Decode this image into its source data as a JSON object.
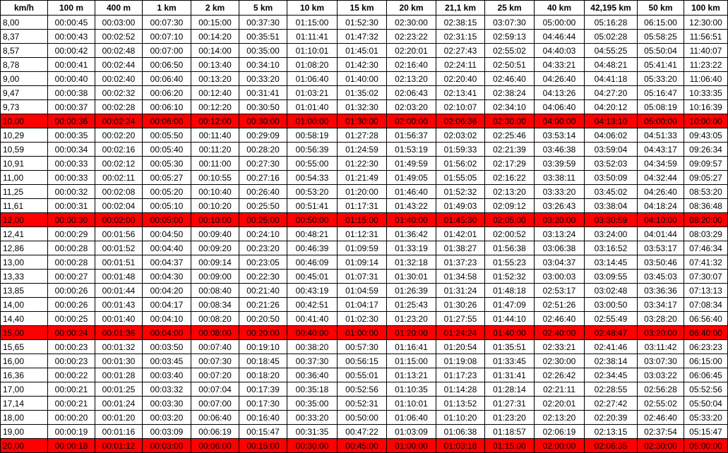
{
  "table": {
    "header": [
      "km/h",
      "100 m",
      "400 m",
      "1 km",
      "2 km",
      "5 km",
      "10 km",
      "15 km",
      "20 km",
      "21,1 km",
      "25 km",
      "40 km",
      "42,195 km",
      "50 km",
      "100 km"
    ],
    "highlight_color": "#ff0000",
    "rows": [
      {
        "cells": [
          "8,00",
          "00:00:45",
          "00:03:00",
          "00:07:30",
          "00:15:00",
          "00:37:30",
          "01:15:00",
          "01:52:30",
          "02:30:00",
          "02:38:15",
          "03:07:30",
          "05:00:00",
          "05:16:28",
          "06:15:00",
          "12:30:00"
        ]
      },
      {
        "cells": [
          "8,37",
          "00:00:43",
          "00:02:52",
          "00:07:10",
          "00:14:20",
          "00:35:51",
          "01:11:41",
          "01:47:32",
          "02:23:22",
          "02:31:15",
          "02:59:13",
          "04:46:44",
          "05:02:28",
          "05:58:25",
          "11:56:51"
        ]
      },
      {
        "cells": [
          "8,57",
          "00:00:42",
          "00:02:48",
          "00:07:00",
          "00:14:00",
          "00:35:00",
          "01:10:01",
          "01:45:01",
          "02:20:01",
          "02:27:43",
          "02:55:02",
          "04:40:03",
          "04:55:25",
          "05:50:04",
          "11:40:07"
        ]
      },
      {
        "cells": [
          "8,78",
          "00:00:41",
          "00:02:44",
          "00:06:50",
          "00:13:40",
          "00:34:10",
          "01:08:20",
          "01:42:30",
          "02:16:40",
          "02:24:11",
          "02:50:51",
          "04:33:21",
          "04:48:21",
          "05:41:41",
          "11:23:22"
        ]
      },
      {
        "cells": [
          "9,00",
          "00:00:40",
          "00:02:40",
          "00:06:40",
          "00:13:20",
          "00:33:20",
          "01:06:40",
          "01:40:00",
          "02:13:20",
          "02:20:40",
          "02:46:40",
          "04:26:40",
          "04:41:18",
          "05:33:20",
          "11:06:40"
        ]
      },
      {
        "cells": [
          "9,47",
          "00:00:38",
          "00:02:32",
          "00:06:20",
          "00:12:40",
          "00:31:41",
          "01:03:21",
          "01:35:02",
          "02:06:43",
          "02:13:41",
          "02:38:24",
          "04:13:26",
          "04:27:20",
          "05:16:47",
          "10:33:35"
        ]
      },
      {
        "cells": [
          "9,73",
          "00:00:37",
          "00:02:28",
          "00:06:10",
          "00:12:20",
          "00:30:50",
          "01:01:40",
          "01:32:30",
          "02:03:20",
          "02:10:07",
          "02:34:10",
          "04:06:40",
          "04:20:12",
          "05:08:19",
          "10:16:39"
        ]
      },
      {
        "cells": [
          "10,00",
          "00:00:36",
          "00:02:24",
          "00:06:00",
          "00:12:00",
          "00:30:00",
          "01:00:00",
          "01:30:00",
          "02:00:00",
          "02:06:36",
          "02:30:00",
          "04:00:00",
          "04:13:10",
          "05:00:00",
          "10:00:00"
        ],
        "highlighted": true
      },
      {
        "cells": [
          "10,29",
          "00:00:35",
          "00:02:20",
          "00:05:50",
          "00:11:40",
          "00:29:09",
          "00:58:19",
          "01:27:28",
          "01:56:37",
          "02:03:02",
          "02:25:46",
          "03:53:14",
          "04:06:02",
          "04:51:33",
          "09:43:05"
        ]
      },
      {
        "cells": [
          "10,59",
          "00:00:34",
          "00:02:16",
          "00:05:40",
          "00:11:20",
          "00:28:20",
          "00:56:39",
          "01:24:59",
          "01:53:19",
          "01:59:33",
          "02:21:39",
          "03:46:38",
          "03:59:04",
          "04:43:17",
          "09:26:34"
        ]
      },
      {
        "cells": [
          "10,91",
          "00:00:33",
          "00:02:12",
          "00:05:30",
          "00:11:00",
          "00:27:30",
          "00:55:00",
          "01:22:30",
          "01:49:59",
          "01:56:02",
          "02:17:29",
          "03:39:59",
          "03:52:03",
          "04:34:59",
          "09:09:57"
        ]
      },
      {
        "cells": [
          "11,00",
          "00:00:33",
          "00:02:11",
          "00:05:27",
          "00:10:55",
          "00:27:16",
          "00:54:33",
          "01:21:49",
          "01:49:05",
          "01:55:05",
          "02:16:22",
          "03:38:11",
          "03:50:09",
          "04:32:44",
          "09:05:27"
        ]
      },
      {
        "cells": [
          "11,25",
          "00:00:32",
          "00:02:08",
          "00:05:20",
          "00:10:40",
          "00:26:40",
          "00:53:20",
          "01:20:00",
          "01:46:40",
          "01:52:32",
          "02:13:20",
          "03:33:20",
          "03:45:02",
          "04:26:40",
          "08:53:20"
        ]
      },
      {
        "cells": [
          "11,61",
          "00:00:31",
          "00:02:04",
          "00:05:10",
          "00:10:20",
          "00:25:50",
          "00:51:41",
          "01:17:31",
          "01:43:22",
          "01:49:03",
          "02:09:12",
          "03:26:43",
          "03:38:04",
          "04:18:24",
          "08:36:48"
        ]
      },
      {
        "cells": [
          "12,00",
          "00:00:30",
          "00:02:00",
          "00:05:00",
          "00:10:00",
          "00:25:00",
          "00:50:00",
          "01:15:00",
          "01:40:00",
          "01:45:30",
          "02:05:00",
          "03:20:00",
          "03:30:59",
          "04:10:00",
          "08:20:00"
        ],
        "highlighted": true
      },
      {
        "cells": [
          "12,41",
          "00:00:29",
          "00:01:56",
          "00:04:50",
          "00:09:40",
          "00:24:10",
          "00:48:21",
          "01:12:31",
          "01:36:42",
          "01:42:01",
          "02:00:52",
          "03:13:24",
          "03:24:00",
          "04:01:44",
          "08:03:29"
        ]
      },
      {
        "cells": [
          "12,86",
          "00:00:28",
          "00:01:52",
          "00:04:40",
          "00:09:20",
          "00:23:20",
          "00:46:39",
          "01:09:59",
          "01:33:19",
          "01:38:27",
          "01:56:38",
          "03:06:38",
          "03:16:52",
          "03:53:17",
          "07:46:34"
        ]
      },
      {
        "cells": [
          "13,00",
          "00:00:28",
          "00:01:51",
          "00:04:37",
          "00:09:14",
          "00:23:05",
          "00:46:09",
          "01:09:14",
          "01:32:18",
          "01:37:23",
          "01:55:23",
          "03:04:37",
          "03:14:45",
          "03:50:46",
          "07:41:32"
        ]
      },
      {
        "cells": [
          "13,33",
          "00:00:27",
          "00:01:48",
          "00:04:30",
          "00:09:00",
          "00:22:30",
          "00:45:01",
          "01:07:31",
          "01:30:01",
          "01:34:58",
          "01:52:32",
          "03:00:03",
          "03:09:55",
          "03:45:03",
          "07:30:07"
        ]
      },
      {
        "cells": [
          "13,85",
          "00:00:26",
          "00:01:44",
          "00:04:20",
          "00:08:40",
          "00:21:40",
          "00:43:19",
          "01:04:59",
          "01:26:39",
          "01:31:24",
          "01:48:18",
          "02:53:17",
          "03:02:48",
          "03:36:36",
          "07:13:13"
        ]
      },
      {
        "cells": [
          "14,00",
          "00:00:26",
          "00:01:43",
          "00:04:17",
          "00:08:34",
          "00:21:26",
          "00:42:51",
          "01:04:17",
          "01:25:43",
          "01:30:26",
          "01:47:09",
          "02:51:26",
          "03:00:50",
          "03:34:17",
          "07:08:34"
        ]
      },
      {
        "cells": [
          "14,40",
          "00:00:25",
          "00:01:40",
          "00:04:10",
          "00:08:20",
          "00:20:50",
          "00:41:40",
          "01:02:30",
          "01:23:20",
          "01:27:55",
          "01:44:10",
          "02:46:40",
          "02:55:49",
          "03:28:20",
          "06:56:40"
        ]
      },
      {
        "cells": [
          "15,00",
          "00:00:24",
          "00:01:36",
          "00:04:00",
          "00:08:00",
          "00:20:00",
          "00:40:00",
          "01:00:00",
          "01:20:00",
          "01:24:24",
          "01:40:00",
          "02:40:00",
          "02:48:47",
          "03:20:00",
          "06:40:00"
        ],
        "highlighted": true
      },
      {
        "cells": [
          "15,65",
          "00:00:23",
          "00:01:32",
          "00:03:50",
          "00:07:40",
          "00:19:10",
          "00:38:20",
          "00:57:30",
          "01:16:41",
          "01:20:54",
          "01:35:51",
          "02:33:21",
          "02:41:46",
          "03:11:42",
          "06:23:23"
        ]
      },
      {
        "cells": [
          "16,00",
          "00:00:23",
          "00:01:30",
          "00:03:45",
          "00:07:30",
          "00:18:45",
          "00:37:30",
          "00:56:15",
          "01:15:00",
          "01:19:08",
          "01:33:45",
          "02:30:00",
          "02:38:14",
          "03:07:30",
          "06:15:00"
        ]
      },
      {
        "cells": [
          "16,36",
          "00:00:22",
          "00:01:28",
          "00:03:40",
          "00:07:20",
          "00:18:20",
          "00:36:40",
          "00:55:01",
          "01:13:21",
          "01:17:23",
          "01:31:41",
          "02:26:42",
          "02:34:45",
          "03:03:22",
          "06:06:45"
        ]
      },
      {
        "cells": [
          "17,00",
          "00:00:21",
          "00:01:25",
          "00:03:32",
          "00:07:04",
          "00:17:39",
          "00:35:18",
          "00:52:56",
          "01:10:35",
          "01:14:28",
          "01:28:14",
          "02:21:11",
          "02:28:55",
          "02:56:28",
          "05:52:56"
        ]
      },
      {
        "cells": [
          "17,14",
          "00:00:21",
          "00:01:24",
          "00:03:30",
          "00:07:00",
          "00:17:30",
          "00:35:00",
          "00:52:31",
          "01:10:01",
          "01:13:52",
          "01:27:31",
          "02:20:01",
          "02:27:42",
          "02:55:02",
          "05:50:04"
        ]
      },
      {
        "cells": [
          "18,00",
          "00:00:20",
          "00:01:20",
          "00:03:20",
          "00:06:40",
          "00:16:40",
          "00:33:20",
          "00:50:00",
          "01:06:40",
          "01:10:20",
          "01:23:20",
          "02:13:20",
          "02:20:39",
          "02:46:40",
          "05:33:20"
        ]
      },
      {
        "cells": [
          "19,00",
          "00:00:19",
          "00:01:16",
          "00:03:09",
          "00:06:19",
          "00:15:47",
          "00:31:35",
          "00:47:22",
          "01:03:09",
          "01:06:38",
          "01:18:57",
          "02:06:19",
          "02:13:15",
          "02:37:54",
          "05:15:47"
        ]
      },
      {
        "cells": [
          "20,00",
          "00:00:18",
          "00:01:12",
          "00:03:00",
          "00:06:00",
          "00:15:00",
          "00:30:00",
          "00:45:00",
          "01:00:00",
          "01:03:18",
          "01:15:00",
          "02:00:00",
          "02:06:35",
          "02:30:00",
          "05:00:00"
        ],
        "highlighted": true
      }
    ]
  }
}
